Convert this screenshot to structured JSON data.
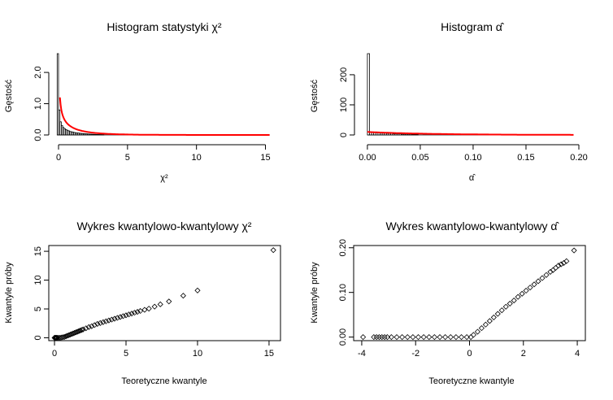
{
  "chart_data": [
    {
      "type": "bar",
      "panel": "hist-chi2",
      "title": "Histogram statystyki χ²",
      "xlabel": "χ²",
      "ylabel": "Gęstość",
      "xlim": [
        0,
        15.5
      ],
      "ylim": [
        0,
        2.6
      ],
      "x_ticks": [
        {
          "v": 0,
          "t": "0"
        },
        {
          "v": 5,
          "t": "5"
        },
        {
          "v": 10,
          "t": "10"
        },
        {
          "v": 15,
          "t": "15"
        }
      ],
      "y_ticks": [
        {
          "v": 0,
          "t": "0.0"
        },
        {
          "v": 1,
          "t": "1.0"
        },
        {
          "v": 2,
          "t": "2.0"
        }
      ],
      "bin_width": 0.1,
      "bin_start": -0.1,
      "values": [
        2.6,
        0.8,
        0.42,
        0.3,
        0.24,
        0.2,
        0.17,
        0.15,
        0.13,
        0.11,
        0.1,
        0.09,
        0.08,
        0.07,
        0.065,
        0.06,
        0.055,
        0.05,
        0.045,
        0.04,
        0.037,
        0.034,
        0.031,
        0.028,
        0.025,
        0.022,
        0.02,
        0.018,
        0.016,
        0.015,
        0.013,
        0.012,
        0.011,
        0.01
      ],
      "density_curve": {
        "color": "#ff0000",
        "shape": "chi2_df1",
        "x_range": [
          0.1,
          15.3
        ]
      }
    },
    {
      "type": "bar",
      "panel": "hist-alpha",
      "title": "Histogram α̂",
      "xlabel": "α̂",
      "ylabel": "Gęstość",
      "xlim": [
        -0.003,
        0.2
      ],
      "ylim": [
        0,
        270
      ],
      "x_ticks": [
        {
          "v": 0,
          "t": "0.00"
        },
        {
          "v": 0.05,
          "t": "0.05"
        },
        {
          "v": 0.1,
          "t": "0.10"
        },
        {
          "v": 0.15,
          "t": "0.15"
        },
        {
          "v": 0.2,
          "t": "0.20"
        }
      ],
      "y_ticks": [
        {
          "v": 0,
          "t": "0"
        },
        {
          "v": 100,
          "t": "100"
        },
        {
          "v": 200,
          "t": "200"
        }
      ],
      "bin_width": 0.002,
      "bin_start": 0,
      "values": [
        270,
        9,
        8,
        8,
        7,
        7,
        6,
        6,
        6,
        5,
        5,
        5,
        4,
        4,
        4,
        4,
        3,
        3,
        3,
        3,
        3,
        2,
        2,
        2
      ],
      "density_curve": {
        "color": "#ff0000",
        "shape": "half_normal_mix",
        "x_range": [
          0,
          0.195
        ]
      }
    },
    {
      "type": "scatter",
      "panel": "qq-chi2",
      "title": "Wykres kwantylowo-kwantylowy χ²",
      "xlabel": "Teoretyczne kwantyle",
      "ylabel": "Kwantyle próby",
      "xlim": [
        -0.4,
        15.8
      ],
      "ylim": [
        -0.5,
        16
      ],
      "x_ticks": [
        {
          "v": 0,
          "t": "0"
        },
        {
          "v": 5,
          "t": "5"
        },
        {
          "v": 10,
          "t": "10"
        },
        {
          "v": 15,
          "t": "15"
        }
      ],
      "y_ticks": [
        {
          "v": 0,
          "t": "0"
        },
        {
          "v": 5,
          "t": "5"
        },
        {
          "v": 10,
          "t": "10"
        },
        {
          "v": 15,
          "t": "15"
        }
      ],
      "x": [
        0.0,
        0.05,
        0.1,
        0.15,
        0.2,
        0.3,
        0.4,
        0.5,
        0.6,
        0.7,
        0.8,
        0.9,
        1.0,
        1.1,
        1.2,
        1.3,
        1.4,
        1.5,
        1.6,
        1.7,
        1.8,
        1.9,
        2.0,
        2.2,
        2.4,
        2.6,
        2.8,
        3.0,
        3.2,
        3.4,
        3.6,
        3.8,
        4.0,
        4.2,
        4.4,
        4.6,
        4.8,
        5.0,
        5.2,
        5.4,
        5.6,
        5.8,
        6.0,
        6.3,
        6.6,
        7.0,
        7.4,
        8.0,
        9.0,
        10.0,
        15.3
      ],
      "y": [
        0.0,
        0.0,
        0.0,
        0.0,
        0.0,
        0.0,
        0.0,
        0.05,
        0.1,
        0.15,
        0.25,
        0.35,
        0.45,
        0.55,
        0.65,
        0.75,
        0.85,
        0.95,
        1.05,
        1.15,
        1.25,
        1.35,
        1.45,
        1.65,
        1.85,
        2.0,
        2.2,
        2.4,
        2.55,
        2.7,
        2.85,
        3.0,
        3.15,
        3.3,
        3.45,
        3.6,
        3.75,
        3.9,
        4.05,
        4.2,
        4.35,
        4.5,
        4.65,
        4.85,
        5.05,
        5.4,
        5.8,
        6.3,
        7.3,
        8.2,
        15.2
      ]
    },
    {
      "type": "scatter",
      "panel": "qq-alpha",
      "title": "Wykres kwantylowo-kwantylowy α̂",
      "xlabel": "Teoretyczne kwantyle",
      "ylabel": "Kwantyle próby",
      "xlim": [
        -4.3,
        4.3
      ],
      "ylim": [
        -0.008,
        0.205
      ],
      "x_ticks": [
        {
          "v": -4,
          "t": "-4"
        },
        {
          "v": -2,
          "t": "-2"
        },
        {
          "v": 0,
          "t": "0"
        },
        {
          "v": 2,
          "t": "2"
        },
        {
          "v": 4,
          "t": "4"
        }
      ],
      "y_ticks": [
        {
          "v": 0,
          "t": "0.00"
        },
        {
          "v": 0.1,
          "t": "0.10"
        },
        {
          "v": 0.2,
          "t": "0.20"
        }
      ],
      "x": [
        -3.95,
        -3.55,
        -3.45,
        -3.35,
        -3.25,
        -3.15,
        -3.05,
        -2.9,
        -2.7,
        -2.5,
        -2.3,
        -2.1,
        -1.9,
        -1.7,
        -1.5,
        -1.3,
        -1.1,
        -0.9,
        -0.7,
        -0.5,
        -0.3,
        -0.1,
        0.05,
        0.15,
        0.3,
        0.45,
        0.6,
        0.75,
        0.9,
        1.05,
        1.2,
        1.35,
        1.5,
        1.65,
        1.8,
        1.95,
        2.1,
        2.25,
        2.4,
        2.55,
        2.7,
        2.85,
        3.0,
        3.1,
        3.2,
        3.3,
        3.4,
        3.5,
        3.6,
        3.88
      ],
      "y": [
        0.0,
        0.0,
        0.0,
        0.0,
        0.0,
        0.0,
        0.0,
        0.0,
        0.0,
        0.0,
        0.0,
        0.0,
        0.0,
        0.0,
        0.0,
        0.0,
        0.0,
        0.0,
        0.0,
        0.0,
        0.0,
        0.0,
        0.0,
        0.005,
        0.012,
        0.02,
        0.028,
        0.036,
        0.044,
        0.052,
        0.06,
        0.068,
        0.075,
        0.082,
        0.09,
        0.097,
        0.104,
        0.111,
        0.118,
        0.125,
        0.132,
        0.139,
        0.146,
        0.15,
        0.155,
        0.16,
        0.163,
        0.166,
        0.17,
        0.194
      ]
    }
  ]
}
